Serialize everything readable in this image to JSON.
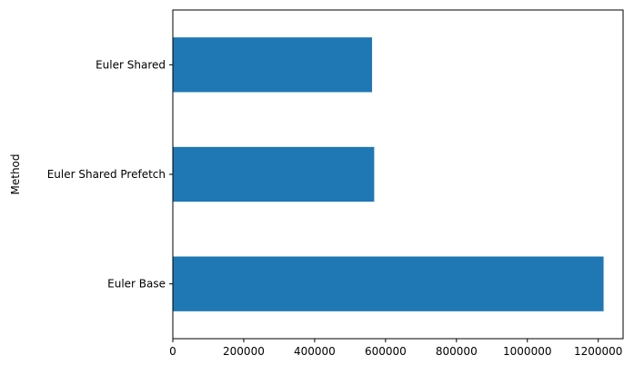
{
  "chart_data": {
    "type": "bar",
    "orientation": "horizontal",
    "title": "",
    "xlabel": "",
    "ylabel": "Method",
    "categories": [
      "Euler Base",
      "Euler Shared Prefetch",
      "Euler Shared"
    ],
    "values": [
      1215000,
      568000,
      562000
    ],
    "xlim": [
      0,
      1270000
    ],
    "xticks": [
      0,
      200000,
      400000,
      600000,
      800000,
      1000000,
      1200000
    ],
    "xtick_labels": [
      "0",
      "200000",
      "400000",
      "600000",
      "800000",
      "1000000",
      "1200000"
    ],
    "grid": false,
    "legend": "none",
    "bar_color": "#1f77b4"
  }
}
